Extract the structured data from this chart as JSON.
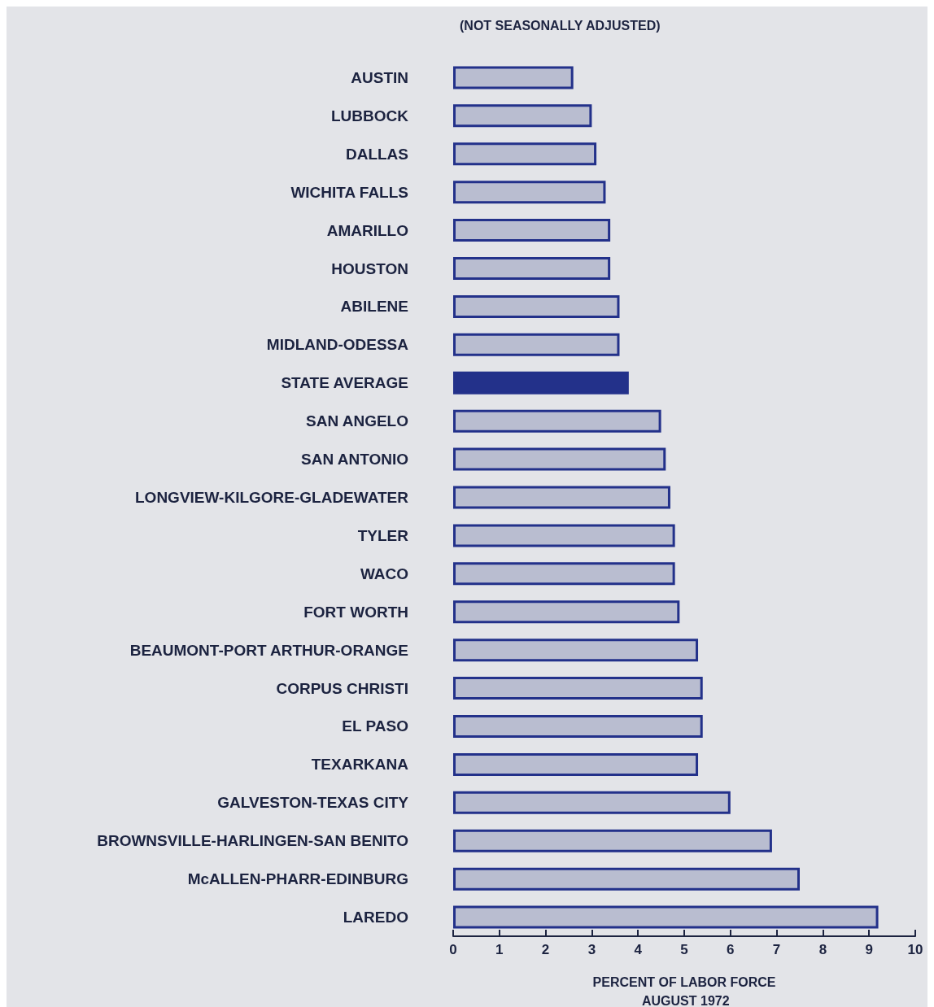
{
  "chart_data": {
    "type": "bar",
    "orientation": "horizontal",
    "title": "(NOT SEASONALLY ADJUSTED)",
    "xlabel": "PERCENT OF LABOR FORCE",
    "annotations": [
      "AUGUST 1972"
    ],
    "categories": [
      "AUSTIN",
      "LUBBOCK",
      "DALLAS",
      "WICHITA FALLS",
      "AMARILLO",
      "HOUSTON",
      "ABILENE",
      "MIDLAND-ODESSA",
      "STATE AVERAGE",
      "SAN ANGELO",
      "SAN ANTONIO",
      "LONGVIEW-KILGORE-GLADEWATER",
      "TYLER",
      "WACO",
      "FORT WORTH",
      "BEAUMONT-PORT ARTHUR-ORANGE",
      "CORPUS CHRISTI",
      "EL PASO",
      "TEXARKANA",
      "GALVESTON-TEXAS CITY",
      "BROWNSVILLE-HARLINGEN-SAN BENITO",
      "McALLEN-PHARR-EDINBURG",
      "LAREDO"
    ],
    "values": [
      2.6,
      3.0,
      3.1,
      3.3,
      3.4,
      3.4,
      3.6,
      3.6,
      3.8,
      4.5,
      4.6,
      4.7,
      4.8,
      4.8,
      4.9,
      5.3,
      5.4,
      5.4,
      5.3,
      6.0,
      6.9,
      7.5,
      9.2
    ],
    "colors": [
      "#b9bdd0",
      "#b9bdd0",
      "#b9bdd0",
      "#b9bdd0",
      "#b9bdd0",
      "#b9bdd0",
      "#b9bdd0",
      "#b9bdd0",
      "#23318a",
      "#b9bdd0",
      "#b9bdd0",
      "#b9bdd0",
      "#b9bdd0",
      "#b9bdd0",
      "#b9bdd0",
      "#b9bdd0",
      "#b9bdd0",
      "#b9bdd0",
      "#b9bdd0",
      "#b9bdd0",
      "#b9bdd0",
      "#b9bdd0",
      "#b9bdd0"
    ],
    "xlim": [
      0,
      10
    ],
    "xticks": [
      0,
      1,
      2,
      3,
      4,
      5,
      6,
      7,
      8,
      9,
      10
    ],
    "grid": false
  }
}
